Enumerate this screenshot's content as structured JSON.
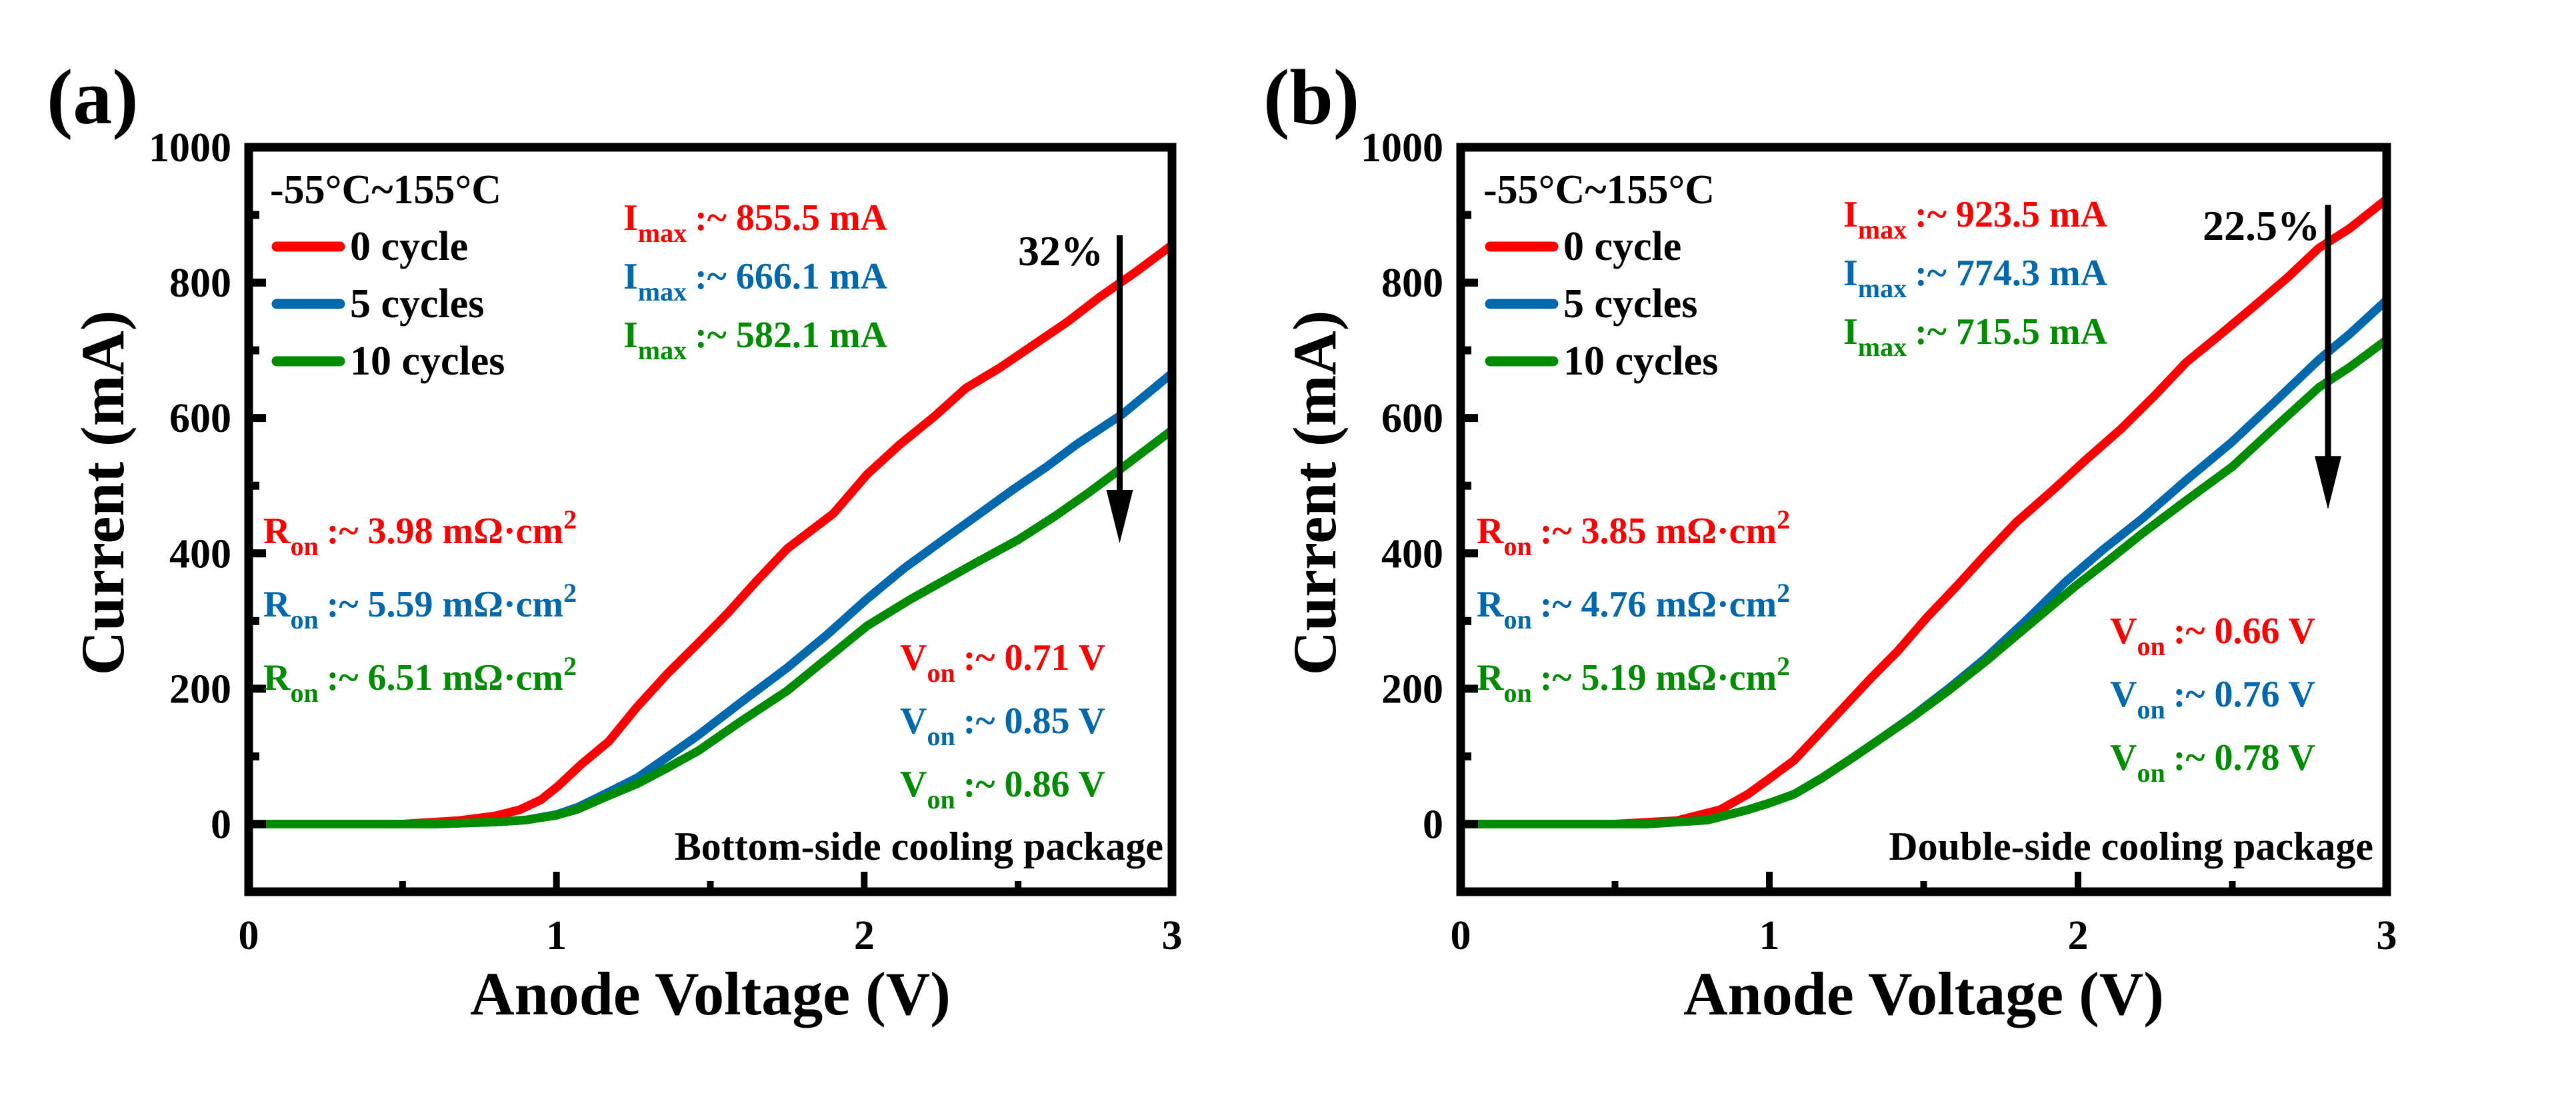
{
  "colors": {
    "c0": "#ff0000",
    "c5": "#0068ad",
    "c10": "#008c00",
    "axis": "#000000"
  },
  "chart_data": [
    {
      "panel_label": "(a)",
      "type": "line",
      "title": "",
      "xlabel": "Anode Voltage (V)",
      "ylabel": "Current (mA)",
      "xlim": [
        0,
        3
      ],
      "ylim": [
        -100,
        1000
      ],
      "x_ticks": [
        "0",
        "1",
        "2",
        "3"
      ],
      "y_ticks": [
        "0",
        "200",
        "400",
        "600",
        "800",
        "1000"
      ],
      "grid": false,
      "legend_title": "-55°C~155°C",
      "legend_position": "top-left",
      "package_label": "Bottom-side cooling package",
      "reduction_label": "32%",
      "reduction_arrow": {
        "x": 2.83,
        "from": 870,
        "to": 415
      },
      "series": [
        {
          "name": "0 cycle",
          "color_key": "c0",
          "x": [
            0,
            0.5,
            0.68,
            0.8,
            0.88,
            0.95,
            1.005,
            1.08,
            1.17,
            1.26,
            1.36,
            1.46,
            1.555,
            1.65,
            1.75,
            1.9,
            2.01,
            2.116,
            2.23,
            2.33,
            2.44,
            2.55,
            2.66,
            2.766,
            2.88,
            3.0
          ],
          "y": [
            0,
            0,
            5,
            12,
            21,
            36,
            56,
            88,
            122,
            172,
            222,
            267,
            311,
            359,
            407,
            459,
            517,
            561,
            603,
            644,
            674,
            708,
            742,
            779,
            815,
            855.5
          ]
        },
        {
          "name": "5 cycles",
          "color_key": "c5",
          "x": [
            0,
            0.6,
            0.8,
            0.9,
            1.0,
            1.07,
            1.16,
            1.265,
            1.36,
            1.46,
            1.6,
            1.75,
            1.88,
            2.01,
            2.13,
            2.26,
            2.37,
            2.48,
            2.59,
            2.69,
            2.84,
            3.0
          ],
          "y": [
            0,
            0,
            3,
            6,
            14,
            25,
            45,
            69,
            99,
            131,
            180,
            231,
            280,
            333,
            378,
            421,
            457,
            493,
            527,
            561,
            606,
            666.1
          ]
        },
        {
          "name": "10 cycles",
          "color_key": "c10",
          "x": [
            0,
            0.6,
            0.8,
            0.9,
            1.0,
            1.07,
            1.16,
            1.265,
            1.36,
            1.46,
            1.6,
            1.75,
            1.88,
            2.01,
            2.15,
            2.26,
            2.37,
            2.5,
            2.62,
            2.73,
            2.84,
            3.0
          ],
          "y": [
            0,
            0,
            3,
            6,
            13,
            22,
            40,
            60,
            83,
            108,
            152,
            197,
            245,
            293,
            332,
            360,
            388,
            420,
            455,
            490,
            527,
            582.1
          ]
        }
      ],
      "annotations": {
        "imax": [
          {
            "sym": "I",
            "sub": "max",
            "text": ":~ 855.5 mA",
            "color_key": "c0"
          },
          {
            "sym": "I",
            "sub": "max",
            "text": ":~ 666.1 mA",
            "color_key": "c5"
          },
          {
            "sym": "I",
            "sub": "max",
            "text": ":~ 582.1 mA",
            "color_key": "c10"
          }
        ],
        "ron": [
          {
            "sym": "R",
            "sub": "on",
            "text": ":~ 3.98 mΩ·cm",
            "sup": "2",
            "color_key": "c0"
          },
          {
            "sym": "R",
            "sub": "on",
            "text": ":~ 5.59 mΩ·cm",
            "sup": "2",
            "color_key": "c5"
          },
          {
            "sym": "R",
            "sub": "on",
            "text": ":~ 6.51 mΩ·cm",
            "sup": "2",
            "color_key": "c10"
          }
        ],
        "von": [
          {
            "sym": "V",
            "sub": "on",
            "text": ":~ 0.71 V",
            "color_key": "c0"
          },
          {
            "sym": "V",
            "sub": "on",
            "text": ":~ 0.85 V",
            "color_key": "c5"
          },
          {
            "sym": "V",
            "sub": "on",
            "text": ":~ 0.86 V",
            "color_key": "c10"
          }
        ]
      }
    },
    {
      "panel_label": "(b)",
      "type": "line",
      "title": "",
      "xlabel": "Anode Voltage (V)",
      "ylabel": "Current (mA)",
      "xlim": [
        0,
        3
      ],
      "ylim": [
        -100,
        1000
      ],
      "x_ticks": [
        "0",
        "1",
        "2",
        "3"
      ],
      "y_ticks": [
        "0",
        "200",
        "400",
        "600",
        "800",
        "1000"
      ],
      "grid": false,
      "legend_title": "-55°C~155°C",
      "legend_position": "top-left",
      "package_label": "Double-side cooling  package",
      "reduction_label": "22.5%",
      "reduction_arrow": {
        "x": 2.81,
        "from": 915,
        "to": 465
      },
      "series": [
        {
          "name": "0 cycle",
          "color_key": "c0",
          "x": [
            0,
            0.5,
            0.7,
            0.84,
            0.93,
            1.0,
            1.08,
            1.16,
            1.25,
            1.33,
            1.415,
            1.51,
            1.61,
            1.7,
            1.8,
            1.92,
            2.03,
            2.14,
            2.25,
            2.35,
            2.46,
            2.57,
            2.68,
            2.78,
            2.88,
            3.0
          ],
          "y": [
            0,
            0,
            5,
            21,
            44,
            67,
            94,
            133,
            177,
            216,
            255,
            305,
            353,
            398,
            446,
            494,
            540,
            584,
            634,
            682,
            723,
            765,
            808,
            851,
            880,
            923.5
          ]
        },
        {
          "name": "5 cycles",
          "color_key": "c5",
          "x": [
            0,
            0.6,
            0.8,
            0.93,
            1.0,
            1.08,
            1.17,
            1.27,
            1.36,
            1.46,
            1.58,
            1.7,
            1.83,
            1.96,
            2.08,
            2.21,
            2.35,
            2.5,
            2.64,
            2.78,
            2.88,
            3.0
          ],
          "y": [
            0,
            0,
            6,
            21,
            31,
            44,
            68,
            98,
            126,
            158,
            200,
            245,
            300,
            358,
            405,
            452,
            508,
            565,
            625,
            686,
            724,
            774.3
          ]
        },
        {
          "name": "10 cycles",
          "color_key": "c10",
          "x": [
            0,
            0.6,
            0.8,
            0.93,
            1.0,
            1.08,
            1.17,
            1.27,
            1.36,
            1.46,
            1.58,
            1.7,
            1.83,
            1.99,
            2.1,
            2.21,
            2.35,
            2.5,
            2.64,
            2.78,
            2.88,
            3.0
          ],
          "y": [
            0,
            0,
            6,
            21,
            31,
            44,
            68,
            98,
            126,
            157,
            197,
            240,
            290,
            351,
            390,
            430,
            478,
            528,
            587,
            645,
            675,
            715.5
          ]
        }
      ],
      "annotations": {
        "imax": [
          {
            "sym": "I",
            "sub": "max",
            "text": ":~ 923.5 mA",
            "color_key": "c0"
          },
          {
            "sym": "I",
            "sub": "max",
            "text": ":~ 774.3 mA",
            "color_key": "c5"
          },
          {
            "sym": "I",
            "sub": "max",
            "text": ":~ 715.5 mA",
            "color_key": "c10"
          }
        ],
        "ron": [
          {
            "sym": "R",
            "sub": "on",
            "text": ":~ 3.85 mΩ·cm",
            "sup": "2",
            "color_key": "c0"
          },
          {
            "sym": "R",
            "sub": "on",
            "text": ":~ 4.76 mΩ·cm",
            "sup": "2",
            "color_key": "c5"
          },
          {
            "sym": "R",
            "sub": "on",
            "text": ":~ 5.19 mΩ·cm",
            "sup": "2",
            "color_key": "c10"
          }
        ],
        "von": [
          {
            "sym": "V",
            "sub": "on",
            "text": ":~ 0.66 V",
            "color_key": "c0"
          },
          {
            "sym": "V",
            "sub": "on",
            "text": ":~ 0.76 V",
            "color_key": "c5"
          },
          {
            "sym": "V",
            "sub": "on",
            "text": ":~ 0.78 V",
            "color_key": "c10"
          }
        ]
      }
    }
  ]
}
